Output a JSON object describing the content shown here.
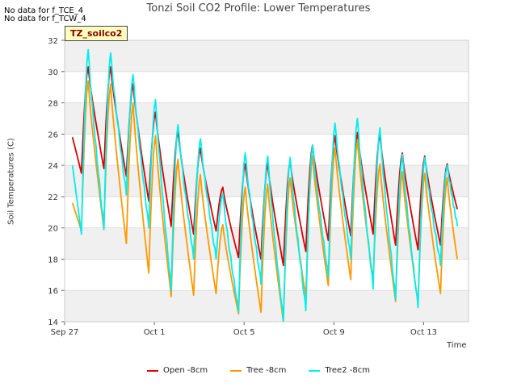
{
  "notes": [
    "No data for f_TCE_4",
    "No data for f_TCW_4"
  ],
  "badge": "TZ_soilco2",
  "chart_data": {
    "type": "line",
    "title": "Tonzi Soil CO2 Profile: Lower Temperatures",
    "xlabel": "Time",
    "ylabel": "Soil Temperatures (C)",
    "ylim": [
      14,
      32
    ],
    "yticks": [
      14,
      16,
      18,
      20,
      22,
      24,
      26,
      28,
      30,
      32
    ],
    "xlim": [
      "Sep 27",
      "Oct 15"
    ],
    "xticks": [
      {
        "label": "Sep 27",
        "day": 0
      },
      {
        "label": "Oct 1",
        "day": 4
      },
      {
        "label": "Oct 5",
        "day": 8
      },
      {
        "label": "Oct 9",
        "day": 12
      },
      {
        "label": "Oct 13",
        "day": 16
      }
    ],
    "grid": "horizontal alternating bands",
    "legend_position": "bottom",
    "peak_days": [
      1.0,
      2.0,
      3.0,
      4.0,
      5.0,
      6.0,
      7.0,
      8.0,
      9.0,
      10.0,
      11.0,
      12.0,
      13.0,
      14.0,
      15.0,
      16.0,
      17.0
    ],
    "end_day": 17.5,
    "series": [
      {
        "name": "Open -8cm",
        "color": "#dd0000",
        "start": 25.8,
        "start_day": 0.35,
        "max": [
          30.3,
          30.3,
          29.2,
          27.4,
          26.2,
          25.1,
          22.6,
          24.1,
          24.1,
          24.3,
          25.3,
          25.9,
          26.1,
          26.0,
          24.8,
          24.6,
          24.1
        ],
        "min": [
          23.5,
          23.8,
          23.3,
          21.7,
          20.1,
          19.6,
          19.8,
          18.1,
          18.0,
          17.6,
          18.5,
          19.2,
          19.5,
          19.6,
          18.9,
          18.6,
          18.9
        ],
        "end": 21.2
      },
      {
        "name": "Tree -8cm",
        "color": "#ff9900",
        "start": 21.6,
        "start_day": 0.35,
        "max": [
          29.4,
          29.2,
          28.0,
          25.9,
          24.4,
          23.4,
          20.2,
          22.6,
          22.8,
          23.2,
          24.6,
          25.1,
          25.6,
          24.1,
          23.6,
          23.5,
          23.2
        ],
        "min": [
          19.8,
          19.9,
          19.0,
          17.1,
          15.6,
          15.7,
          15.8,
          14.5,
          14.6,
          14.0,
          15.6,
          16.3,
          16.7,
          16.6,
          15.3,
          15.2,
          15.8
        ],
        "end": 18.0
      },
      {
        "name": "Tree2 -8cm",
        "color": "#00eeee",
        "start": 24.0,
        "start_day": 0.35,
        "max": [
          31.4,
          31.2,
          29.8,
          28.2,
          26.6,
          25.7,
          22.2,
          24.8,
          24.6,
          24.5,
          25.3,
          26.7,
          27.0,
          26.4,
          24.7,
          24.5,
          24.0
        ],
        "min": [
          19.6,
          19.9,
          22.1,
          20.0,
          16.0,
          18.0,
          18.0,
          14.6,
          16.4,
          14.0,
          14.7,
          16.8,
          18.0,
          16.1,
          15.4,
          14.9,
          17.6
        ],
        "end": 20.1
      }
    ]
  }
}
